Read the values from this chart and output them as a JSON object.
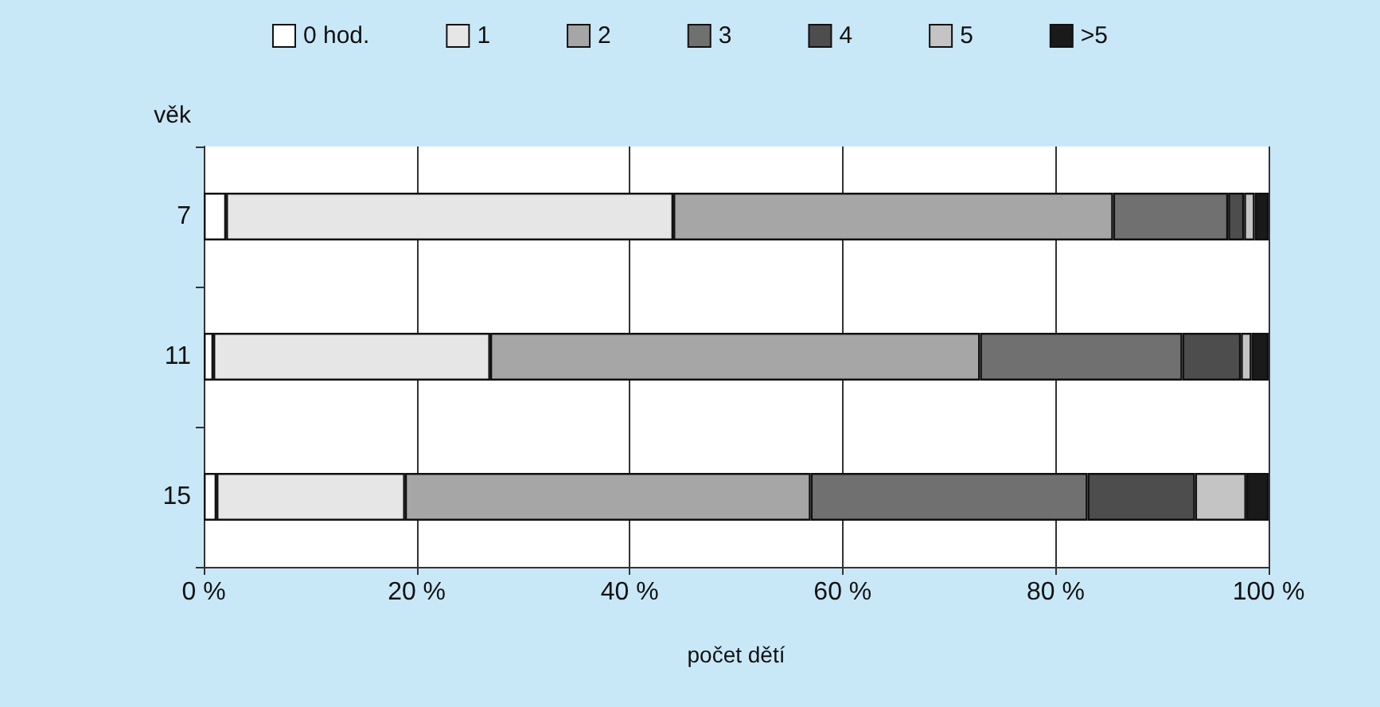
{
  "chart_data": {
    "type": "bar",
    "orientation": "horizontal",
    "stacked": true,
    "xlabel": "počet dětí",
    "ylabel": "věk",
    "categories": [
      "7",
      "11",
      "15"
    ],
    "series": [
      {
        "name": "0 hod.",
        "color": "#ffffff",
        "values": [
          2.1,
          0.9,
          1.2
        ]
      },
      {
        "name": "1",
        "color": "#e6e6e6",
        "values": [
          42,
          26,
          17.7
        ]
      },
      {
        "name": "2",
        "color": "#a6a6a6",
        "values": [
          41.3,
          46,
          38.1
        ]
      },
      {
        "name": "3",
        "color": "#707070",
        "values": [
          10.8,
          19,
          26
        ]
      },
      {
        "name": "4",
        "color": "#4d4d4d",
        "values": [
          1.5,
          5.5,
          10.1
        ]
      },
      {
        "name": "5",
        "color": "#c4c4c4",
        "values": [
          1,
          1,
          4.8
        ]
      },
      {
        "name": ">5",
        "color": "#1a1a1a",
        "values": [
          1.3,
          1.6,
          2.1
        ]
      }
    ],
    "xlim": [
      0,
      100
    ],
    "xticks": [
      {
        "value": 0,
        "label": "0 %"
      },
      {
        "value": 20,
        "label": "20 %"
      },
      {
        "value": 40,
        "label": "40 %"
      },
      {
        "value": 60,
        "label": "60 %"
      },
      {
        "value": 80,
        "label": "80 %"
      },
      {
        "value": 100,
        "label": "100 %"
      }
    ],
    "grid": "x",
    "legend": "top"
  }
}
